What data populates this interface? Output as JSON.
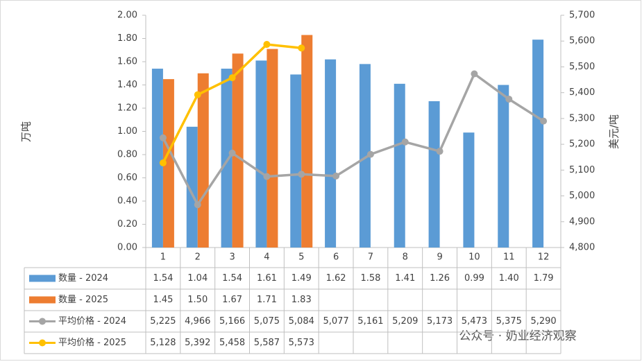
{
  "chart_data": {
    "type": "bar-line-table",
    "categories": [
      "1",
      "2",
      "3",
      "4",
      "5",
      "6",
      "7",
      "8",
      "9",
      "10",
      "11",
      "12"
    ],
    "y_label": "万吨",
    "y2_label": "美元/吨",
    "ylim": [
      0,
      2
    ],
    "yticks": [
      {
        "value": 0,
        "label": "0.00"
      },
      {
        "value": 0.2,
        "label": "0.20"
      },
      {
        "value": 0.4,
        "label": "0.40"
      },
      {
        "value": 0.6,
        "label": "0.60"
      },
      {
        "value": 0.8,
        "label": "0.80"
      },
      {
        "value": 1,
        "label": "1.00"
      },
      {
        "value": 1.2,
        "label": "1.20"
      },
      {
        "value": 1.4,
        "label": "1.40"
      },
      {
        "value": 1.6,
        "label": "1.60"
      },
      {
        "value": 1.8,
        "label": "1.80"
      },
      {
        "value": 2,
        "label": "2.00"
      }
    ],
    "y2lim": [
      4800,
      5700
    ],
    "y2ticks": [
      {
        "value": 4800,
        "label": "4,800"
      },
      {
        "value": 4900,
        "label": "4,900"
      },
      {
        "value": 5000,
        "label": "5,000"
      },
      {
        "value": 5100,
        "label": "5,100"
      },
      {
        "value": 5200,
        "label": "5,200"
      },
      {
        "value": 5300,
        "label": "5,300"
      },
      {
        "value": 5400,
        "label": "5,400"
      },
      {
        "value": 5500,
        "label": "5,500"
      },
      {
        "value": 5600,
        "label": "5,600"
      },
      {
        "value": 5700,
        "label": "5,700"
      }
    ],
    "series": [
      {
        "name": "数量 - 2024",
        "kind": "bar",
        "color": "#5b9bd5",
        "values": [
          1.54,
          1.04,
          1.54,
          1.61,
          1.49,
          1.62,
          1.58,
          1.41,
          1.26,
          0.99,
          1.4,
          1.79
        ],
        "value_labels": [
          "1.54",
          "1.04",
          "1.54",
          "1.61",
          "1.49",
          "1.62",
          "1.58",
          "1.41",
          "1.26",
          "0.99",
          "1.40",
          "1.79"
        ]
      },
      {
        "name": "数量 - 2025",
        "kind": "bar",
        "color": "#ed7d31",
        "values": [
          1.45,
          1.5,
          1.67,
          1.71,
          1.83,
          null,
          null,
          null,
          null,
          null,
          null,
          null
        ],
        "value_labels": [
          "1.45",
          "1.50",
          "1.67",
          "1.71",
          "1.83",
          null,
          null,
          null,
          null,
          null,
          null,
          null
        ]
      },
      {
        "name": "平均价格 - 2024",
        "kind": "line",
        "axis": "y2",
        "color": "#a5a5a5",
        "values": [
          5225,
          4966,
          5166,
          5075,
          5084,
          5077,
          5161,
          5209,
          5173,
          5473,
          5375,
          5290
        ],
        "value_labels": [
          "5,225",
          "4,966",
          "5,166",
          "5,075",
          "5,084",
          "5,077",
          "5,161",
          "5,209",
          "5,173",
          "5,473",
          "5,375",
          "5,290"
        ]
      },
      {
        "name": "平均价格 - 2025",
        "kind": "line",
        "axis": "y2",
        "color": "#ffc000",
        "values": [
          5128,
          5392,
          5458,
          5587,
          5573,
          null,
          null,
          null,
          null,
          null,
          null,
          null
        ],
        "value_labels": [
          "5,128",
          "5,392",
          "5,458",
          "5,587",
          "5,573",
          null,
          null,
          null,
          null,
          null,
          null,
          null
        ]
      }
    ],
    "watermark": "公众号 · 奶业经济观察"
  }
}
